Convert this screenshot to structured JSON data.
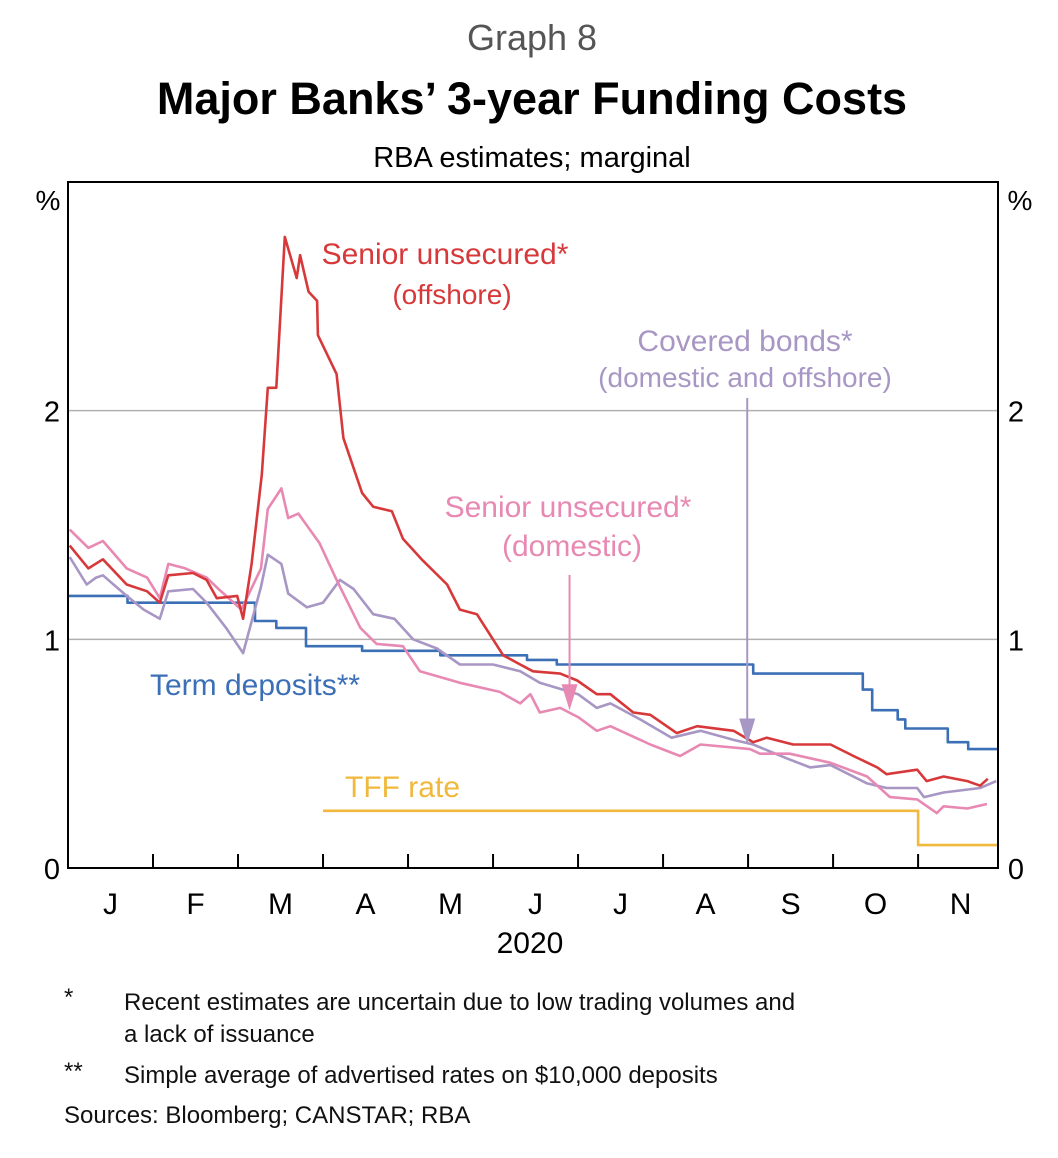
{
  "graph_number": "Graph 8",
  "chart_data": {
    "type": "line",
    "title": "Major Banks’ 3-year Funding Costs",
    "subtitle": "RBA estimates; marginal",
    "ylabel_left": "%",
    "ylabel_right": "%",
    "xlabel": "2020",
    "x_units": "months since 1 Jan 2020",
    "xlim": [
      0,
      10.94
    ],
    "ylim": [
      0,
      3
    ],
    "yticks": [
      0,
      1,
      2
    ],
    "ytick_labels": [
      "0",
      "1",
      "2"
    ],
    "month_labels": [
      "J",
      "F",
      "M",
      "A",
      "M",
      "J",
      "J",
      "A",
      "S",
      "O",
      "N"
    ],
    "grid": true,
    "series": [
      {
        "name": "Term deposits**",
        "color": "#3b6fb6",
        "step": true,
        "points": [
          [
            0,
            1.19
          ],
          [
            0.7,
            1.19
          ],
          [
            0.7,
            1.16
          ],
          [
            2.2,
            1.16
          ],
          [
            2.2,
            1.08
          ],
          [
            2.45,
            1.08
          ],
          [
            2.45,
            1.05
          ],
          [
            2.8,
            1.05
          ],
          [
            2.8,
            0.97
          ],
          [
            3.46,
            0.97
          ],
          [
            3.46,
            0.95
          ],
          [
            4.38,
            0.95
          ],
          [
            4.38,
            0.93
          ],
          [
            5.4,
            0.93
          ],
          [
            5.4,
            0.91
          ],
          [
            5.75,
            0.91
          ],
          [
            5.75,
            0.89
          ],
          [
            8.06,
            0.89
          ],
          [
            8.06,
            0.85
          ],
          [
            9.35,
            0.85
          ],
          [
            9.35,
            0.78
          ],
          [
            9.46,
            0.78
          ],
          [
            9.46,
            0.69
          ],
          [
            9.76,
            0.69
          ],
          [
            9.76,
            0.65
          ],
          [
            9.85,
            0.65
          ],
          [
            9.85,
            0.61
          ],
          [
            10.35,
            0.61
          ],
          [
            10.35,
            0.55
          ],
          [
            10.59,
            0.55
          ],
          [
            10.59,
            0.52
          ],
          [
            10.94,
            0.52
          ]
        ]
      },
      {
        "name": "TFF rate",
        "color": "#f0b83c",
        "step": true,
        "points": [
          [
            3.0,
            0.25
          ],
          [
            10.0,
            0.25
          ],
          [
            10.0,
            0.1
          ],
          [
            10.94,
            0.1
          ]
        ]
      },
      {
        "name": "Covered bonds* (domestic and offshore)",
        "color": "#a896c4",
        "points": [
          [
            0.02,
            1.36
          ],
          [
            0.22,
            1.24
          ],
          [
            0.33,
            1.27
          ],
          [
            0.41,
            1.28
          ],
          [
            0.69,
            1.19
          ],
          [
            0.89,
            1.13
          ],
          [
            1.08,
            1.09
          ],
          [
            1.18,
            1.21
          ],
          [
            1.47,
            1.22
          ],
          [
            1.63,
            1.16
          ],
          [
            1.86,
            1.05
          ],
          [
            2.06,
            0.94
          ],
          [
            2.27,
            1.23
          ],
          [
            2.35,
            1.37
          ],
          [
            2.51,
            1.33
          ],
          [
            2.59,
            1.2
          ],
          [
            2.81,
            1.14
          ],
          [
            3.0,
            1.16
          ],
          [
            3.2,
            1.26
          ],
          [
            3.36,
            1.22
          ],
          [
            3.59,
            1.11
          ],
          [
            3.84,
            1.09
          ],
          [
            4.06,
            1.0
          ],
          [
            4.34,
            0.96
          ],
          [
            4.61,
            0.89
          ],
          [
            5.0,
            0.89
          ],
          [
            5.32,
            0.86
          ],
          [
            5.55,
            0.81
          ],
          [
            6.0,
            0.76
          ],
          [
            6.22,
            0.7
          ],
          [
            6.38,
            0.72
          ],
          [
            6.73,
            0.65
          ],
          [
            7.1,
            0.57
          ],
          [
            7.44,
            0.6
          ],
          [
            7.83,
            0.56
          ],
          [
            8.06,
            0.54
          ],
          [
            8.45,
            0.48
          ],
          [
            8.73,
            0.44
          ],
          [
            8.97,
            0.45
          ],
          [
            9.4,
            0.37
          ],
          [
            9.63,
            0.35
          ],
          [
            9.99,
            0.35
          ],
          [
            10.07,
            0.31
          ],
          [
            10.3,
            0.33
          ],
          [
            10.73,
            0.35
          ],
          [
            10.92,
            0.38
          ]
        ]
      },
      {
        "name": "Senior unsecured* (domestic)",
        "color": "#e889b3",
        "points": [
          [
            0.02,
            1.48
          ],
          [
            0.24,
            1.4
          ],
          [
            0.41,
            1.43
          ],
          [
            0.69,
            1.31
          ],
          [
            0.93,
            1.27
          ],
          [
            1.08,
            1.18
          ],
          [
            1.18,
            1.33
          ],
          [
            1.38,
            1.31
          ],
          [
            1.63,
            1.27
          ],
          [
            1.77,
            1.22
          ],
          [
            2.04,
            1.13
          ],
          [
            2.27,
            1.31
          ],
          [
            2.35,
            1.57
          ],
          [
            2.51,
            1.66
          ],
          [
            2.59,
            1.53
          ],
          [
            2.71,
            1.55
          ],
          [
            2.96,
            1.42
          ],
          [
            3.16,
            1.26
          ],
          [
            3.44,
            1.05
          ],
          [
            3.63,
            0.98
          ],
          [
            3.94,
            0.97
          ],
          [
            4.14,
            0.86
          ],
          [
            4.61,
            0.81
          ],
          [
            5.08,
            0.77
          ],
          [
            5.32,
            0.72
          ],
          [
            5.44,
            0.76
          ],
          [
            5.55,
            0.68
          ],
          [
            5.79,
            0.7
          ],
          [
            6.0,
            0.66
          ],
          [
            6.22,
            0.6
          ],
          [
            6.38,
            0.62
          ],
          [
            6.85,
            0.54
          ],
          [
            7.2,
            0.49
          ],
          [
            7.44,
            0.54
          ],
          [
            8.02,
            0.52
          ],
          [
            8.14,
            0.5
          ],
          [
            8.49,
            0.5
          ],
          [
            8.97,
            0.46
          ],
          [
            9.4,
            0.4
          ],
          [
            9.67,
            0.31
          ],
          [
            9.99,
            0.3
          ],
          [
            10.22,
            0.24
          ],
          [
            10.3,
            0.27
          ],
          [
            10.58,
            0.26
          ],
          [
            10.81,
            0.28
          ]
        ]
      },
      {
        "name": "Senior unsecured* (offshore)",
        "color": "#d7393b",
        "points": [
          [
            0.02,
            1.41
          ],
          [
            0.24,
            1.31
          ],
          [
            0.41,
            1.35
          ],
          [
            0.69,
            1.24
          ],
          [
            0.93,
            1.21
          ],
          [
            1.08,
            1.16
          ],
          [
            1.18,
            1.28
          ],
          [
            1.47,
            1.29
          ],
          [
            1.63,
            1.26
          ],
          [
            1.75,
            1.18
          ],
          [
            1.99,
            1.19
          ],
          [
            2.06,
            1.09
          ],
          [
            2.16,
            1.33
          ],
          [
            2.28,
            1.72
          ],
          [
            2.35,
            2.1
          ],
          [
            2.45,
            2.1
          ],
          [
            2.55,
            2.76
          ],
          [
            2.69,
            2.58
          ],
          [
            2.73,
            2.68
          ],
          [
            2.83,
            2.52
          ],
          [
            2.93,
            2.48
          ],
          [
            2.94,
            2.33
          ],
          [
            3.16,
            2.16
          ],
          [
            3.24,
            1.88
          ],
          [
            3.46,
            1.64
          ],
          [
            3.59,
            1.58
          ],
          [
            3.81,
            1.56
          ],
          [
            3.94,
            1.44
          ],
          [
            4.16,
            1.35
          ],
          [
            4.46,
            1.24
          ],
          [
            4.61,
            1.13
          ],
          [
            4.81,
            1.11
          ],
          [
            5.12,
            0.93
          ],
          [
            5.32,
            0.89
          ],
          [
            5.47,
            0.86
          ],
          [
            5.79,
            0.85
          ],
          [
            5.99,
            0.82
          ],
          [
            6.22,
            0.76
          ],
          [
            6.38,
            0.76
          ],
          [
            6.65,
            0.68
          ],
          [
            6.85,
            0.67
          ],
          [
            7.16,
            0.59
          ],
          [
            7.4,
            0.62
          ],
          [
            7.83,
            0.6
          ],
          [
            8.06,
            0.55
          ],
          [
            8.22,
            0.57
          ],
          [
            8.53,
            0.54
          ],
          [
            8.97,
            0.54
          ],
          [
            9.24,
            0.49
          ],
          [
            9.52,
            0.44
          ],
          [
            9.63,
            0.41
          ],
          [
            9.99,
            0.43
          ],
          [
            10.1,
            0.38
          ],
          [
            10.3,
            0.4
          ],
          [
            10.58,
            0.38
          ],
          [
            10.73,
            0.36
          ],
          [
            10.82,
            0.39
          ]
        ]
      }
    ],
    "labels": {
      "offshore_1": "Senior unsecured*",
      "offshore_2": "(offshore)",
      "covered_1": "Covered bonds*",
      "covered_2": "(domestic and offshore)",
      "domestic_1": "Senior unsecured*",
      "domestic_2": "(domestic)",
      "term": "Term deposits**",
      "tff": "TFF rate"
    },
    "arrows": [
      {
        "series": "Senior unsecured* (domestic)",
        "x": 5.9,
        "y": 0.69,
        "color": "#e889b3"
      },
      {
        "series": "Covered bonds* (domestic and offshore)",
        "x": 7.99,
        "y": 0.54,
        "color": "#a896c4"
      }
    ]
  },
  "footnotes": [
    {
      "mark": "*",
      "text": "Recent estimates are uncertain due to low trading volumes and",
      "text2": "a lack of issuance"
    },
    {
      "mark": "**",
      "text": "Simple average of advertised rates on $10,000 deposits"
    }
  ],
  "sources": "Sources: Bloomberg; CANSTAR; RBA"
}
